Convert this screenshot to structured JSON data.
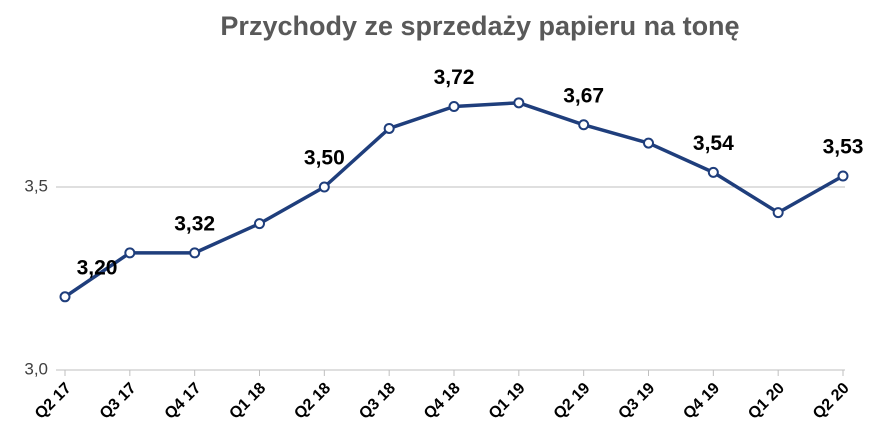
{
  "chart_data": {
    "type": "line",
    "title": "Przychody ze sprzedaży papieru na tonę",
    "categories": [
      "Q2 17",
      "Q3 17",
      "Q4 17",
      "Q1 18",
      "Q2 18",
      "Q3 18",
      "Q4 18",
      "Q1 19",
      "Q2 19",
      "Q3 19",
      "Q4 19",
      "Q1 20",
      "Q2 20"
    ],
    "series": [
      {
        "name": null,
        "color": "#1f3e7c",
        "values": [
          3.2,
          3.32,
          3.32,
          3.4,
          3.5,
          3.66,
          3.72,
          3.73,
          3.67,
          3.62,
          3.54,
          3.43,
          3.53
        ],
        "value_labels": [
          "3,20",
          null,
          "3,32",
          null,
          "3,50",
          null,
          "3,72",
          null,
          "3,67",
          null,
          "3,54",
          null,
          "3,53"
        ]
      }
    ],
    "ylim": [
      3.0,
      3.73
    ],
    "yticks": [
      {
        "value": 3.0,
        "label": "3,0"
      },
      {
        "value": 3.5,
        "label": "3,5"
      }
    ],
    "grid": true
  }
}
